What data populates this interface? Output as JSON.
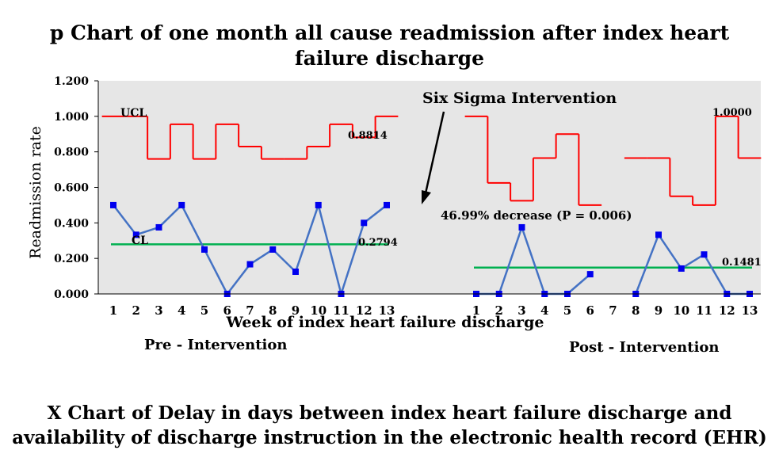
{
  "title_line1": "p Chart of one month all cause readmission after index heart",
  "title_line2": "failure discharge",
  "bottom_title_line1": "X Chart of Delay in days between index heart failure discharge and",
  "bottom_title_line2": "availability of discharge instruction in the electronic health record (EHR)",
  "colors": {
    "plot_bg": "#e6e6e6",
    "ucl": "#ff0000",
    "cl": "#00b050",
    "series": "#4472c4",
    "marker": "#0000ee"
  },
  "chart_data": {
    "type": "line",
    "title": "p Chart of one month all cause readmission after index heart failure discharge",
    "xlabel": "Week of index heart failure discharge",
    "ylabel": "Readmission rate",
    "ylim": [
      0,
      1.2
    ],
    "yticks": [
      "0.000",
      "0.200",
      "0.400",
      "0.600",
      "0.800",
      "1.000",
      "1.200"
    ],
    "grid": false,
    "ucl_label": "UCL",
    "cl_label": "CL",
    "intervention_label": "Six Sigma Intervention",
    "decrease_label": "46.99% decrease (P = 0.006)",
    "pre": {
      "label": "Pre - Intervention",
      "x": [
        "1",
        "2",
        "3",
        "4",
        "5",
        "6",
        "7",
        "8",
        "9",
        "10",
        "11",
        "12",
        "13"
      ],
      "values": [
        0.5,
        0.333,
        0.375,
        0.5,
        0.25,
        0.0,
        0.167,
        0.25,
        0.125,
        0.5,
        0.0,
        0.4,
        0.5
      ],
      "ucl": [
        1.0,
        1.0,
        0.76,
        0.955,
        0.76,
        0.955,
        0.83,
        0.76,
        0.76,
        0.83,
        0.955,
        0.8814,
        1.0
      ],
      "cl": 0.2794,
      "ucl_value_label": "0.8814",
      "cl_value_label": "0.2794"
    },
    "post": {
      "label": "Post - Intervention",
      "x": [
        "1",
        "2",
        "3",
        "4",
        "5",
        "6",
        "7",
        "8",
        "9",
        "10",
        "11",
        "12",
        "13"
      ],
      "values": [
        0.0,
        0.0,
        0.375,
        0.0,
        0.0,
        0.111,
        null,
        0.0,
        0.333,
        0.143,
        0.222,
        0.0,
        0.0
      ],
      "ucl": [
        1.0,
        0.625,
        0.525,
        0.765,
        0.9,
        0.5,
        null,
        0.765,
        0.765,
        0.55,
        0.5,
        1.0,
        0.765
      ],
      "cl": 0.1481,
      "ucl_value_label": "1.0000",
      "cl_value_label": "0.1481"
    }
  }
}
